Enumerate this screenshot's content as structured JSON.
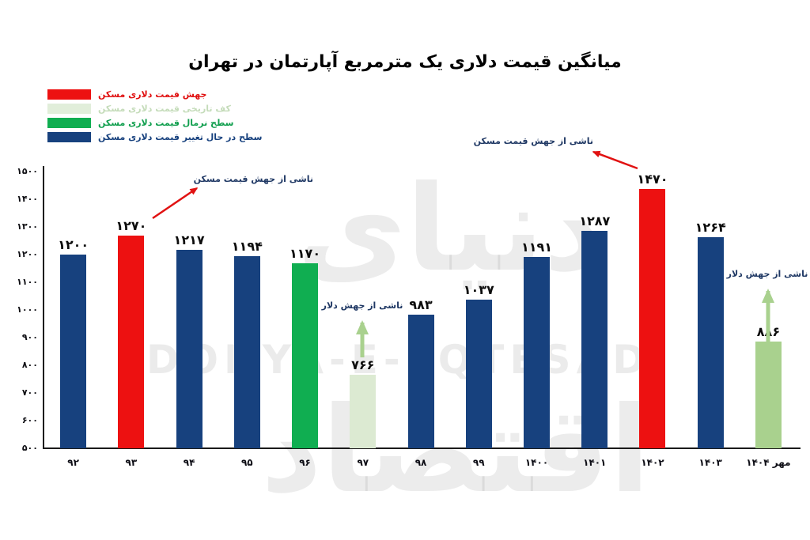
{
  "title": "میانگین قیمت دلاری یک مترمربع آپارتمان در تهران",
  "watermark": {
    "fa": "دنیای اقتصاد",
    "en": "DONYA-E-EQTESAD"
  },
  "legend": {
    "items": [
      {
        "label": "جهش قیمت دلاری مسکن",
        "color": "#ed1111",
        "text_color": "#e01010"
      },
      {
        "label": "کف تاریخی قیمت دلاری مسکن",
        "color": "#e1eeda",
        "text_color": "#c5dcba"
      },
      {
        "label": "سطح نرمال قیمت دلاری مسکن",
        "color": "#10ae51",
        "text_color": "#0f9e4d"
      },
      {
        "label": "سطح در حال تغییر قیمت دلاری مسکن",
        "color": "#17417e",
        "text_color": "#17417e"
      }
    ]
  },
  "annotations": [
    {
      "id": "housing-jump-93",
      "text": "ناشی از جهش قیمت مسکن",
      "arrow_color": "#e11212"
    },
    {
      "id": "housing-jump-1402",
      "text": "ناشی از جهش قیمت مسکن",
      "arrow_color": "#e11212"
    },
    {
      "id": "dollar-jump-97",
      "text": "ناشی از جهش دلار",
      "arrow_color": "#a9d18e"
    },
    {
      "id": "dollar-jump-1404",
      "text": "ناشی از جهش دلار",
      "arrow_color": "#a9d18e"
    }
  ],
  "chart_data": {
    "type": "bar",
    "title": "میانگین قیمت دلاری یک مترمربع آپارتمان در تهران",
    "categories": [
      "۹۲",
      "۹۳",
      "۹۴",
      "۹۵",
      "۹۶",
      "۹۷",
      "۹۸",
      "۹۹",
      "۱۴۰۰",
      "۱۴۰۱",
      "۱۴۰۲",
      "۱۴۰۳",
      "مهر ۱۴۰۴"
    ],
    "categories_en": [
      "92",
      "93",
      "94",
      "95",
      "96",
      "97",
      "98",
      "99",
      "1400",
      "1401",
      "1402",
      "1403",
      "Mehr-1404"
    ],
    "values": [
      1200,
      1270,
      1217,
      1194,
      1170,
      766,
      983,
      1037,
      1191,
      1287,
      1470,
      1264,
      886
    ],
    "value_labels_fa": [
      "۱۲۰۰",
      "۱۲۷۰",
      "۱۲۱۷",
      "۱۱۹۴",
      "۱۱۷۰",
      "۷۶۶",
      "۹۸۳",
      "۱۰۳۷",
      "۱۱۹۱",
      "۱۲۸۷",
      "۱۴۷۰",
      "۱۲۶۴",
      "۸۸۶"
    ],
    "bar_roles": [
      "changing",
      "jump",
      "changing",
      "changing",
      "normal",
      "floor",
      "changing",
      "changing",
      "changing",
      "changing",
      "jump",
      "changing",
      "floor_new"
    ],
    "role_colors": {
      "jump": "#ed1111",
      "floor": "#dcead2",
      "normal": "#10ae51",
      "changing": "#17417e",
      "floor_new": "#a9d18e"
    },
    "ylim": [
      500,
      1500
    ],
    "ytick_step": 100,
    "yticks_fa": [
      "۵۰۰",
      "۶۰۰",
      "۷۰۰",
      "۸۰۰",
      "۹۰۰",
      "۱۰۰۰",
      "۱۱۰۰",
      "۱۲۰۰",
      "۱۳۰۰",
      "۱۴۰۰",
      "۱۵۰۰"
    ],
    "grid": false,
    "legend_position": "top-left"
  }
}
